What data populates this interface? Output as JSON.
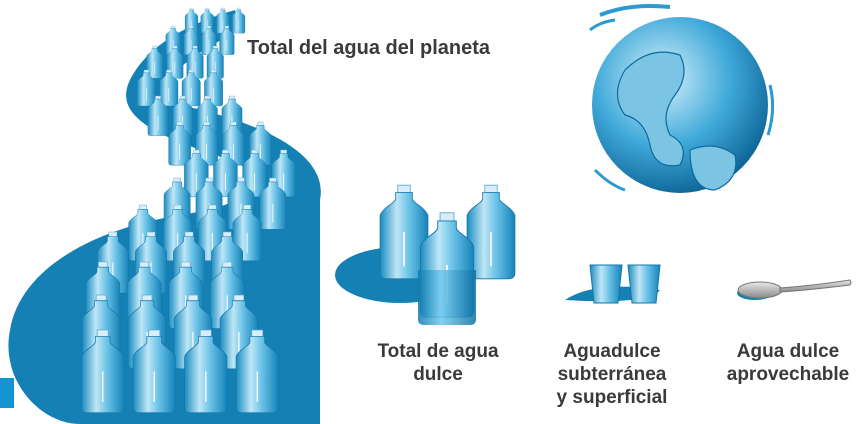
{
  "labels": {
    "planet": "Total del agua del planeta",
    "fresh": [
      "Total de agua",
      "dulce"
    ],
    "ground": [
      "Aguadulce",
      "subterránea",
      "y superficial"
    ],
    "usable": [
      "Agua dulce",
      "aprovechable"
    ]
  }
}
